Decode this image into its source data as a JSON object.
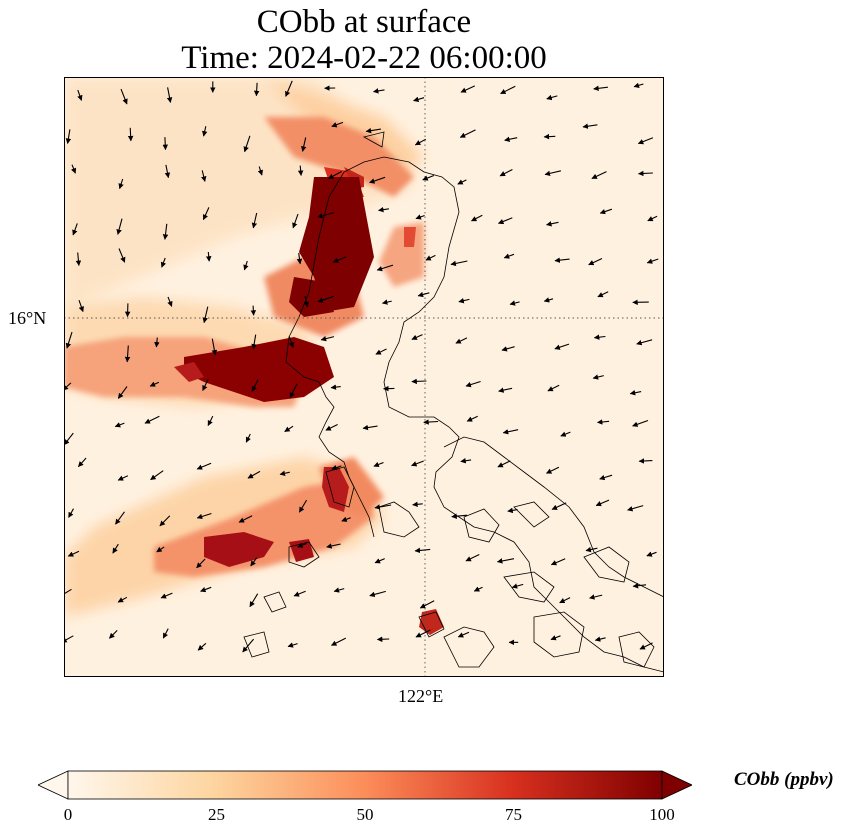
{
  "title": {
    "line1": "CObb at surface",
    "line2": "Time: 2024-02-22 06:00:00"
  },
  "map": {
    "variable": "CObb",
    "level": "surface",
    "gridlines": {
      "latitude_label": "16°N",
      "longitude_label": "122°E",
      "style": "dotted"
    },
    "features": [
      "coastlines",
      "wind-vectors",
      "concentration-field"
    ]
  },
  "colorbar": {
    "label": "CObb (ppbv)",
    "colormap": "OrRd",
    "range": [
      0,
      100
    ],
    "ticks": [
      "0",
      "25",
      "50",
      "75",
      "100"
    ],
    "extend": "both",
    "colors": [
      "#fff7ec",
      "#fdd49e",
      "#fc8d59",
      "#d7301f",
      "#7f0000"
    ]
  }
}
